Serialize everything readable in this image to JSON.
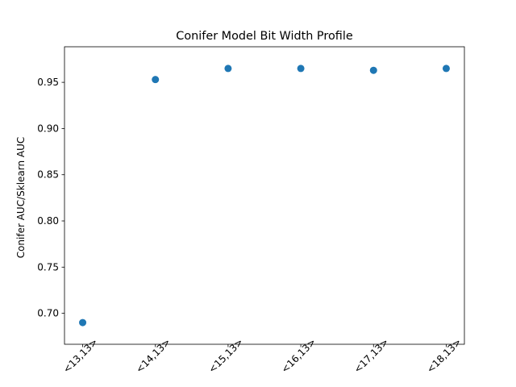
{
  "chart_data": {
    "type": "scatter",
    "title": "Conifer Model Bit Width Profile",
    "xlabel": "",
    "ylabel": "Conifer AUC/Sklearn AUC",
    "categories": [
      "<13,13>",
      "<14,13>",
      "<15,13>",
      "<16,13>",
      "<17,13>",
      "<18,13>"
    ],
    "series": [
      {
        "values": [
          0.69,
          0.953,
          0.965,
          0.965,
          0.963,
          0.965
        ]
      }
    ],
    "yticks": [
      0.7,
      0.75,
      0.8,
      0.85,
      0.9,
      0.95
    ],
    "ytick_labels": [
      "0.70",
      "0.75",
      "0.80",
      "0.85",
      "0.90",
      "0.95"
    ],
    "ylim": [
      0.6665,
      0.9885
    ],
    "grid": false,
    "legend": "none",
    "colors": {
      "marker": "#1f77b4",
      "axes": "#000000",
      "background": "#ffffff"
    }
  }
}
